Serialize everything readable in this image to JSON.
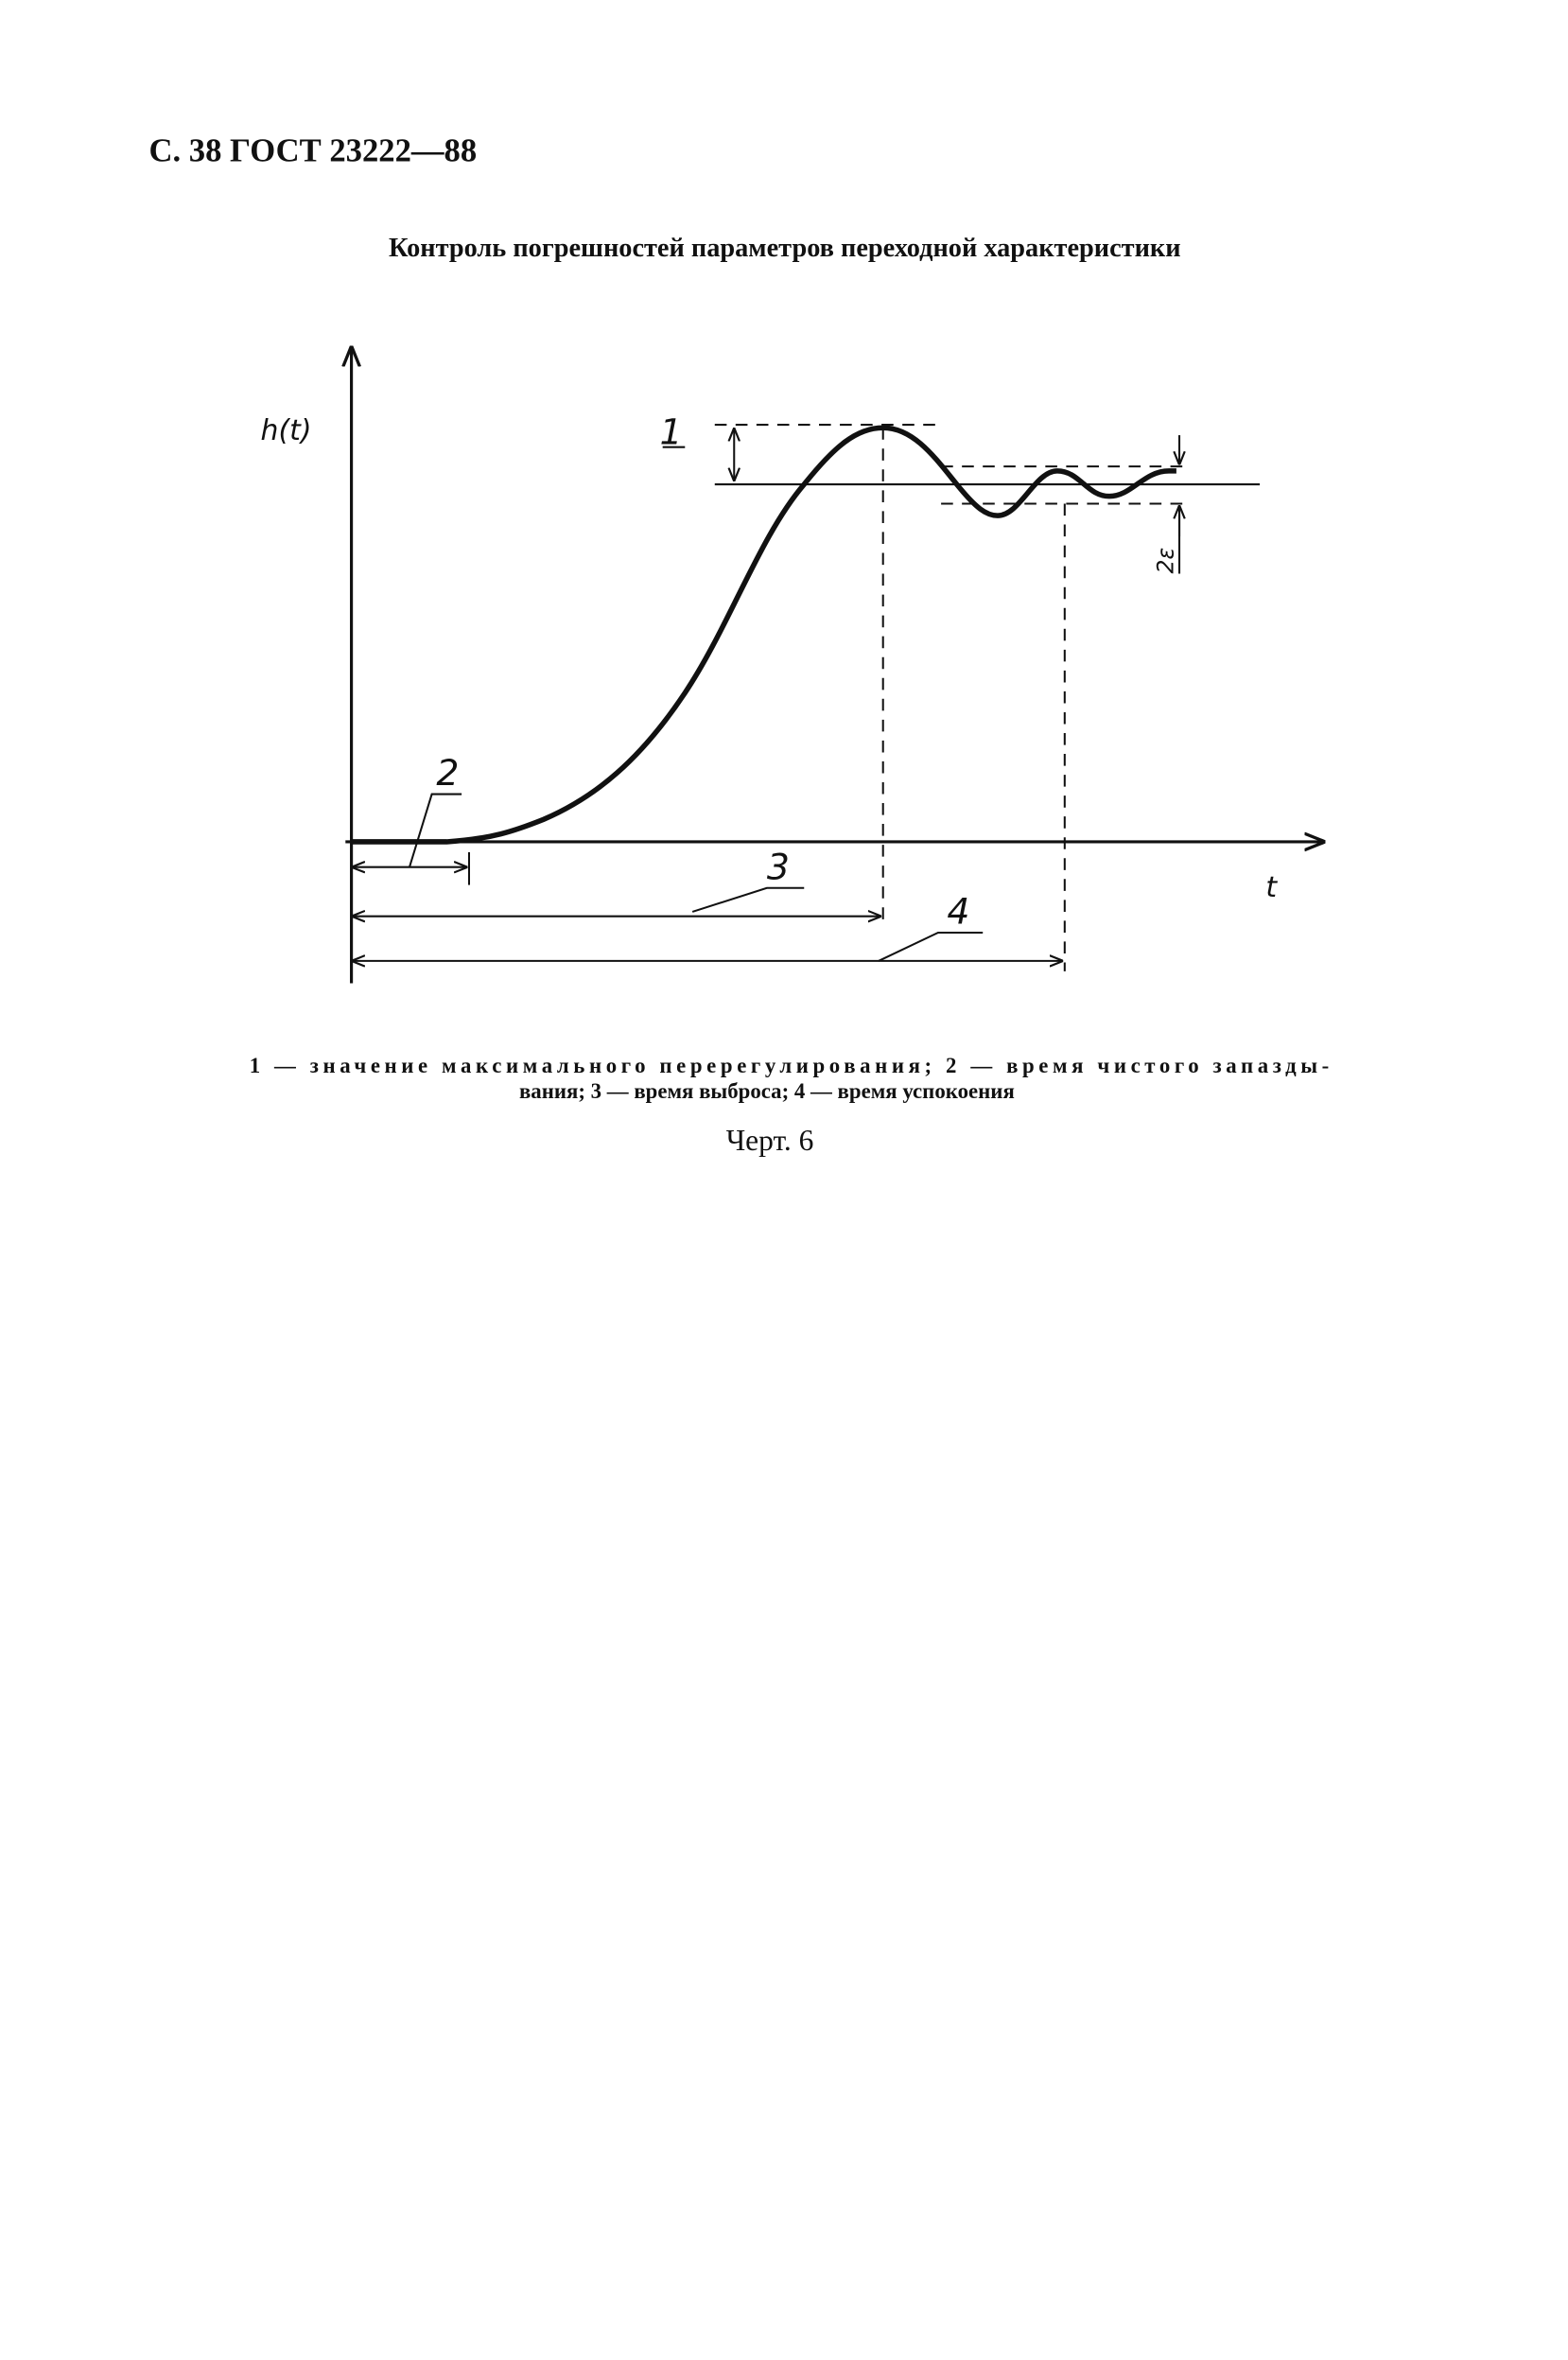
{
  "header": "С. 38 ГОСТ 23222—88",
  "title": "Контроль погрешностей параметров переходной характеристики",
  "diagram": {
    "y_label": "h(t)",
    "x_label": "t",
    "labels": {
      "overshoot": "1",
      "dead_time": "2",
      "rise_time": "3",
      "settling_time": "4",
      "band": "2ε"
    }
  },
  "caption": {
    "lines": [
      "1 — значение максимального перерегулирования; 2 — время чистого запазды-",
      "вания; 3 — время выброса; 4 — время успокоения"
    ]
  },
  "figure_label": "Черт. 6"
}
